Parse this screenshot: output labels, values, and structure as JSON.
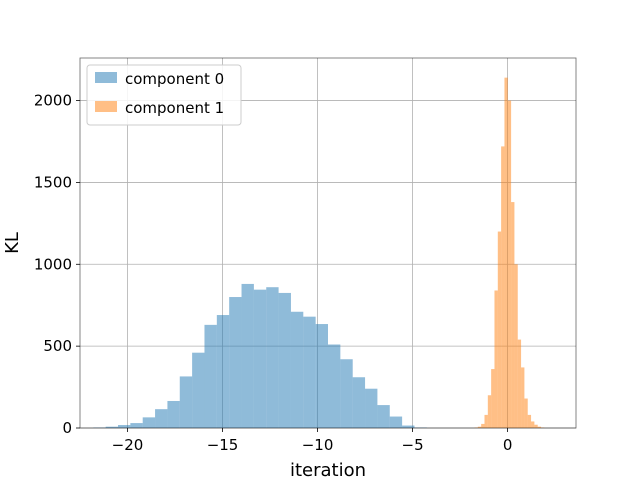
{
  "chart_data": {
    "type": "histogram",
    "xlabel": "iteration",
    "ylabel": "KL",
    "xlim": [
      -22.5,
      3.6
    ],
    "ylim": [
      0,
      2260
    ],
    "xticks": [
      -20,
      -15,
      -10,
      -5,
      0
    ],
    "xtick_labels": [
      "−20",
      "−15",
      "−10",
      "−5",
      "0"
    ],
    "yticks": [
      0,
      500,
      1000,
      1500,
      2000
    ],
    "ytick_labels": [
      "0",
      "500",
      "1000",
      "1500",
      "2000"
    ],
    "grid": true,
    "legend_position": "upper-left",
    "series": [
      {
        "name": "component 0",
        "color": "#1f77b4",
        "alpha": 0.5,
        "bin_start": -21.8,
        "bin_width": 0.65,
        "counts": [
          3,
          8,
          18,
          30,
          65,
          115,
          165,
          315,
          460,
          630,
          690,
          800,
          880,
          845,
          860,
          825,
          710,
          680,
          635,
          510,
          420,
          310,
          240,
          140,
          70,
          15,
          3
        ]
      },
      {
        "name": "component 1",
        "color": "#ff7f0e",
        "alpha": 0.5,
        "bin_start": -1.74,
        "bin_width": 0.175,
        "counts": [
          3,
          8,
          25,
          80,
          200,
          360,
          840,
          1200,
          1720,
          2140,
          2000,
          1380,
          1000,
          540,
          370,
          180,
          80,
          40,
          20,
          8,
          3
        ]
      }
    ]
  }
}
